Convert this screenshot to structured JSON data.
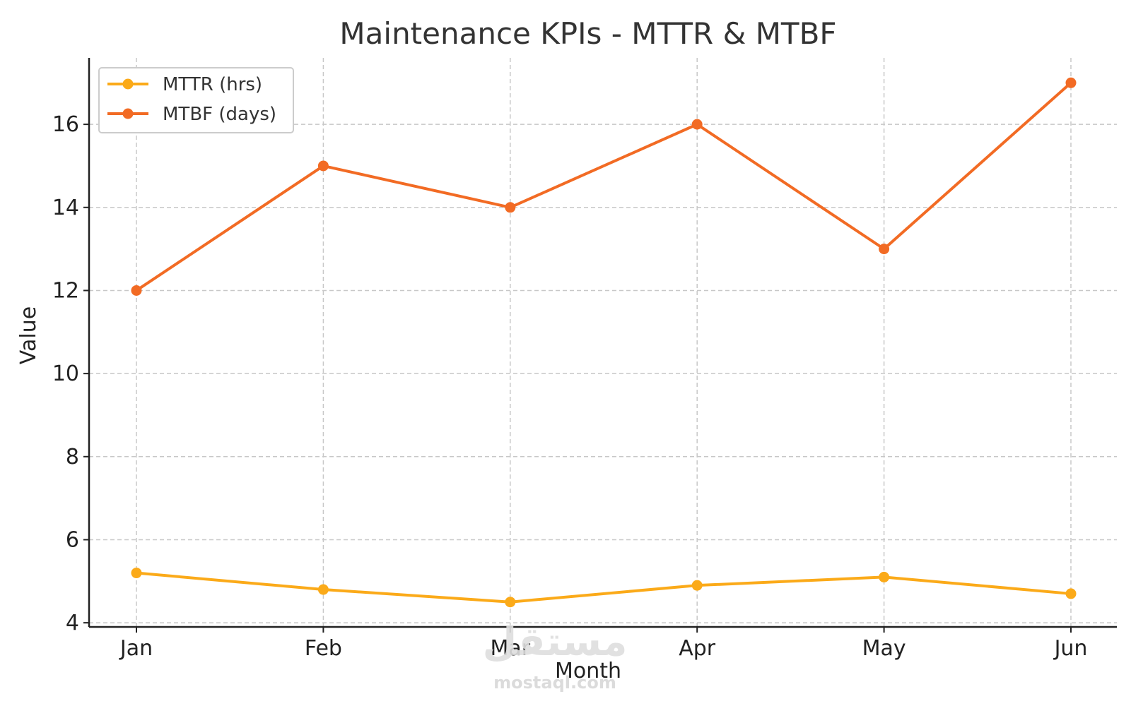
{
  "chart_data": {
    "type": "line",
    "title": "Maintenance KPIs - MTTR & MTBF",
    "xlabel": "Month",
    "ylabel": "Value",
    "categories": [
      "Jan",
      "Feb",
      "Mar",
      "Apr",
      "May",
      "Jun"
    ],
    "ylim": [
      3.9,
      17.6
    ],
    "yticks": [
      4,
      6,
      8,
      10,
      12,
      14,
      16
    ],
    "grid": true,
    "legend_position": "top-left",
    "series": [
      {
        "name": "MTTR (hrs)",
        "color": "#FBAA19",
        "values": [
          5.2,
          4.8,
          4.5,
          4.9,
          5.1,
          4.7
        ]
      },
      {
        "name": "MTBF (days)",
        "color": "#F26B24",
        "values": [
          12,
          15,
          14,
          16,
          13,
          17
        ]
      }
    ]
  },
  "watermark": {
    "logo": "مستقل",
    "text": "mostaql.com"
  }
}
